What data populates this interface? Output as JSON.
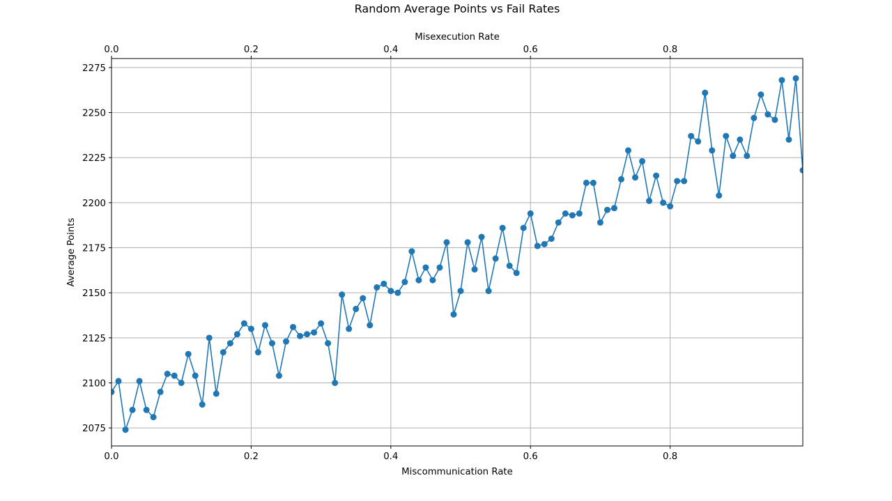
{
  "chart_data": {
    "type": "line",
    "title": "Random Average Points vs Fail Rates",
    "xlabel": "Miscommunication Rate",
    "x2label": "Misexecution Rate",
    "ylabel": "Average Points",
    "xlim": [
      0,
      0.99
    ],
    "ylim": [
      2065,
      2280
    ],
    "xticks": [
      0.0,
      0.2,
      0.4,
      0.6,
      0.8
    ],
    "xtick_labels": [
      "0.0",
      "0.2",
      "0.4",
      "0.6",
      "0.8"
    ],
    "x2ticks": [
      0.0,
      0.2,
      0.4,
      0.6,
      0.8
    ],
    "x2tick_labels": [
      "0.0",
      "0.2",
      "0.4",
      "0.6",
      "0.8"
    ],
    "yticks": [
      2075,
      2100,
      2125,
      2150,
      2175,
      2200,
      2225,
      2250,
      2275
    ],
    "ytick_labels": [
      "2075",
      "2100",
      "2125",
      "2150",
      "2175",
      "2200",
      "2225",
      "2250",
      "2275"
    ],
    "grid": true,
    "color": "#1f77b4",
    "marker": "circle",
    "series": [
      {
        "x": [
          0.0,
          0.01,
          0.02,
          0.03,
          0.04,
          0.05,
          0.06,
          0.07,
          0.08,
          0.09,
          0.1,
          0.11,
          0.12,
          0.13,
          0.14,
          0.15,
          0.16,
          0.17,
          0.18,
          0.19,
          0.2,
          0.21,
          0.22,
          0.23,
          0.24,
          0.25,
          0.26,
          0.27,
          0.28,
          0.29,
          0.3,
          0.31,
          0.32,
          0.33,
          0.34,
          0.35,
          0.36,
          0.37,
          0.38,
          0.39,
          0.4,
          0.41,
          0.42,
          0.43,
          0.44,
          0.45,
          0.46,
          0.47,
          0.48,
          0.49,
          0.5,
          0.51,
          0.52,
          0.53,
          0.54,
          0.55,
          0.56,
          0.57,
          0.58,
          0.59,
          0.6,
          0.61,
          0.62,
          0.63,
          0.64,
          0.65,
          0.66,
          0.67,
          0.68,
          0.69,
          0.7,
          0.71,
          0.72,
          0.73,
          0.74,
          0.75,
          0.76,
          0.77,
          0.78,
          0.79,
          0.8,
          0.81,
          0.82,
          0.83,
          0.84,
          0.85,
          0.86,
          0.87,
          0.88,
          0.89,
          0.9,
          0.91,
          0.92,
          0.93,
          0.94,
          0.95,
          0.96,
          0.97,
          0.98,
          0.99
        ],
        "y": [
          2095,
          2101,
          2074,
          2085,
          2101,
          2085,
          2081,
          2095,
          2105,
          2104,
          2100,
          2116,
          2104,
          2088,
          2125,
          2094,
          2117,
          2122,
          2127,
          2133,
          2130,
          2117,
          2132,
          2122,
          2104,
          2123,
          2131,
          2126,
          2127,
          2128,
          2133,
          2122,
          2100,
          2149,
          2130,
          2141,
          2147,
          2132,
          2153,
          2155,
          2151,
          2150,
          2156,
          2173,
          2157,
          2164,
          2157,
          2164,
          2178,
          2138,
          2151,
          2178,
          2163,
          2181,
          2151,
          2169,
          2186,
          2165,
          2161,
          2186,
          2194,
          2176,
          2177,
          2180,
          2189,
          2194,
          2193,
          2194,
          2211,
          2211,
          2189,
          2196,
          2197,
          2213,
          2229,
          2214,
          2223,
          2201,
          2215,
          2200,
          2198,
          2212,
          2212,
          2237,
          2234,
          2261,
          2229,
          2204,
          2237,
          2226,
          2235,
          2226,
          2247,
          2260,
          2249,
          2246,
          2268,
          2235,
          2269,
          2218
        ]
      }
    ]
  }
}
